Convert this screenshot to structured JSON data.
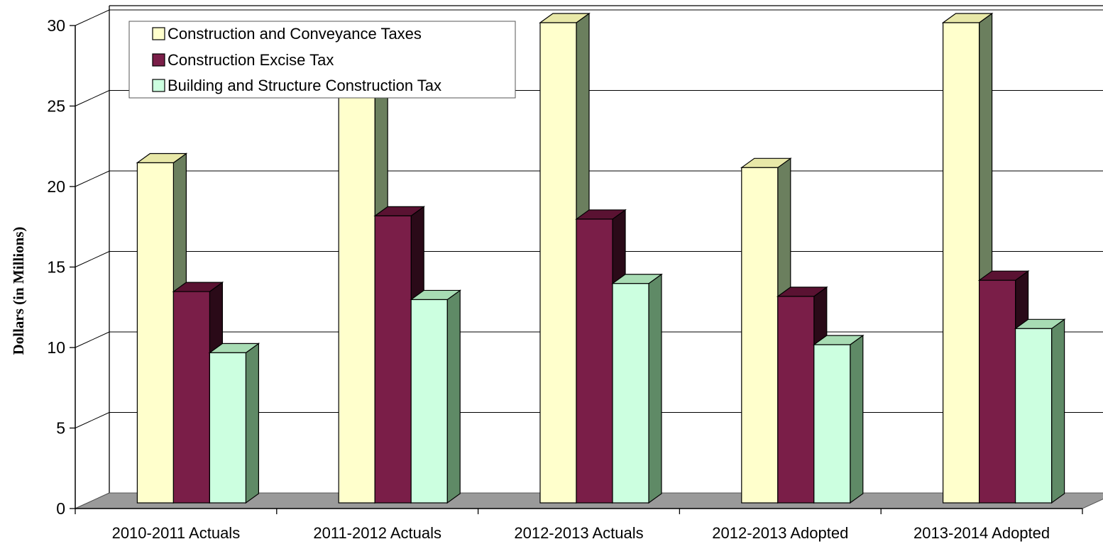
{
  "chart_data": {
    "type": "bar",
    "ylabel": "Dollars (in Millions)",
    "ylim": [
      0,
      30
    ],
    "yticks": [
      "0",
      "5",
      "10",
      "15",
      "20",
      "25",
      "30"
    ],
    "grid": true,
    "legend_position": "top-left",
    "categories": [
      "2010-2011 Actuals",
      "2011-2012 Actuals",
      "2012-2013 Actuals",
      "2012-2013 Adopted",
      "2013-2014 Adopted"
    ],
    "series": [
      {
        "name": "Construction and Conveyance Taxes",
        "values": [
          21.3,
          25.5,
          30.0,
          21.0,
          30.0
        ],
        "color": "#ffffcc",
        "side_color": "#6b7f5e",
        "top_color": "#e8e8a8"
      },
      {
        "name": "Construction Excise Tax",
        "values": [
          13.3,
          18.0,
          17.8,
          13.0,
          14.0
        ],
        "color": "#7a1e48",
        "side_color": "#2a0a18",
        "top_color": "#5a1232"
      },
      {
        "name": "Building and Structure Construction Tax",
        "values": [
          9.5,
          12.8,
          13.8,
          10.0,
          11.0
        ],
        "color": "#ccffe0",
        "side_color": "#5f8a66",
        "top_color": "#a8dcb4"
      }
    ]
  }
}
